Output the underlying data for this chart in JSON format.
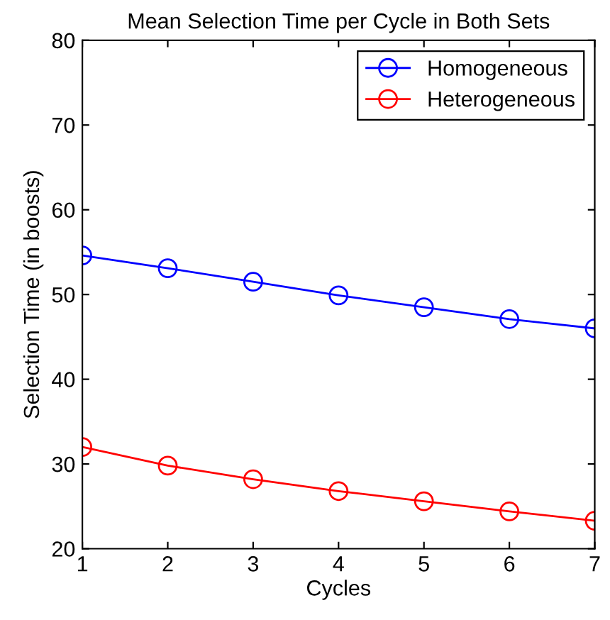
{
  "chart_data": {
    "type": "line",
    "title": "Mean Selection Time per Cycle in Both Sets",
    "xlabel": "Cycles",
    "ylabel": "Selection Time (in boosts)",
    "x": [
      1,
      2,
      3,
      4,
      5,
      6,
      7
    ],
    "series": [
      {
        "name": "Homogeneous",
        "color": "#0000ff",
        "values": [
          54.6,
          53.1,
          51.5,
          49.9,
          48.5,
          47.1,
          46.0
        ]
      },
      {
        "name": "Heterogeneous",
        "color": "#ff0000",
        "values": [
          32.0,
          29.8,
          28.2,
          26.8,
          25.6,
          24.4,
          23.3
        ]
      }
    ],
    "xlim": [
      1,
      7
    ],
    "xticks": [
      1,
      2,
      3,
      4,
      5,
      6,
      7
    ],
    "ylim": [
      20,
      80
    ],
    "yticks": [
      20,
      30,
      40,
      50,
      60,
      70,
      80
    ],
    "grid": false,
    "legend": "top right",
    "marker": "circle",
    "line_style": "solid"
  }
}
